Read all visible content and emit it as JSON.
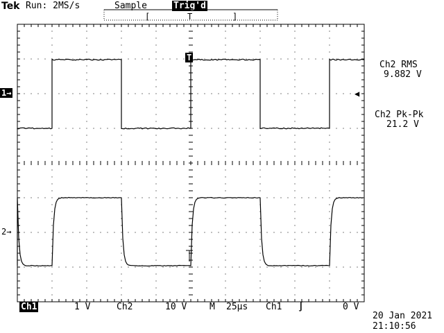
{
  "header": {
    "brand": "Tek",
    "run_label": "Run: 2MS/s",
    "mode_label": "Sample",
    "trig_label": "Trig'd",
    "trigger_window": {
      "left_bracket": "[",
      "marker": "T",
      "right_bracket": "]"
    }
  },
  "markers": {
    "ch1_ground": "1→",
    "ch2_ground": "2→",
    "trigger_top": "T",
    "trigger_level_arrow": "◀"
  },
  "measurements": [
    {
      "label": "Ch2 RMS",
      "value": "9.882 V"
    },
    {
      "label": "Ch2 Pk-Pk",
      "value": "21.2 V"
    }
  ],
  "footer": {
    "ch1_label": "Ch1",
    "ch1_scale": "1 V",
    "ch2_label": "Ch2",
    "ch2_scale": "10 V",
    "timebase_label": "M",
    "timebase_value": "25µs",
    "trigger_source": "Ch1",
    "trigger_slope": "∫",
    "trigger_level": "0 V",
    "date": "20 Jan 2021",
    "time": "21:10:56"
  },
  "colors": {
    "background": "#ffffff",
    "foreground": "#000000"
  }
}
